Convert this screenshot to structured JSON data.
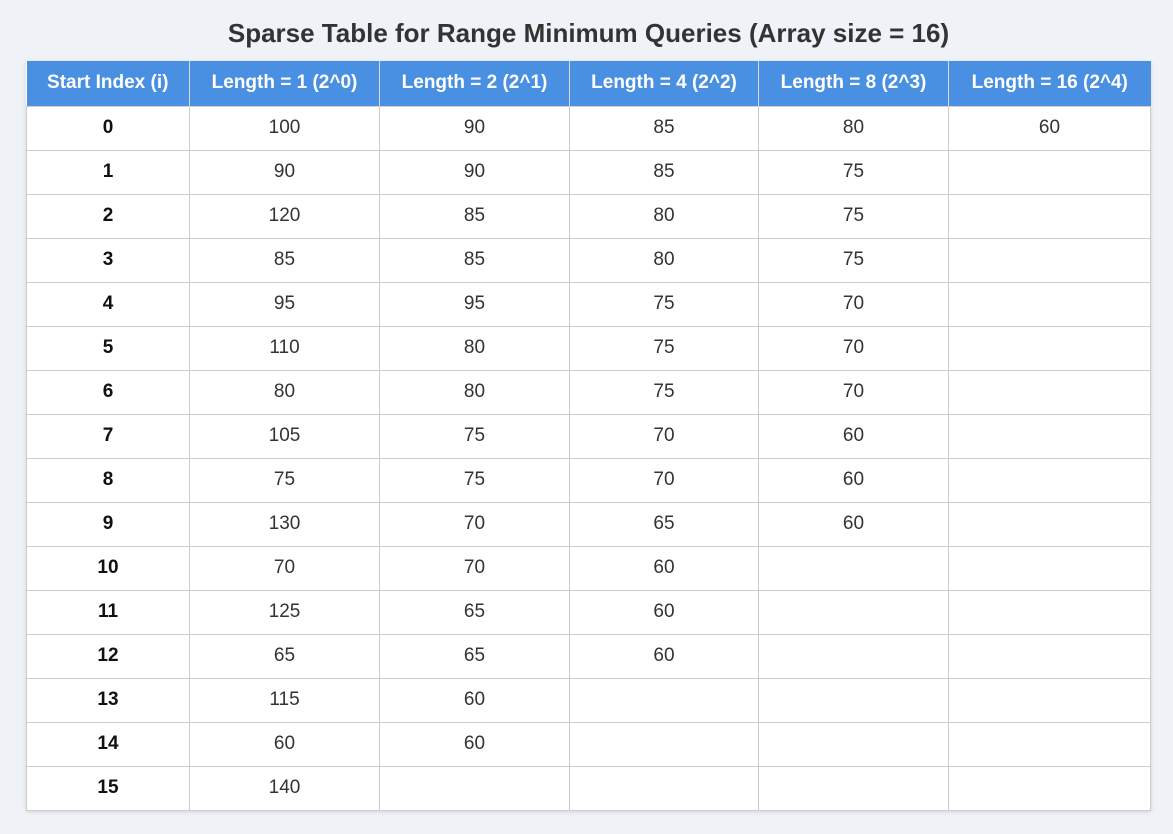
{
  "chart_data": {
    "type": "table",
    "title": "Sparse Table for Range Minimum Queries (Array size = 16)",
    "columns": [
      "Start Index (i)",
      "Length = 1 (2^0)",
      "Length = 2 (2^1)",
      "Length = 4 (2^2)",
      "Length = 8 (2^3)",
      "Length = 16 (2^4)"
    ],
    "rows": [
      [
        "0",
        "100",
        "90",
        "85",
        "80",
        "60"
      ],
      [
        "1",
        "90",
        "90",
        "85",
        "75",
        ""
      ],
      [
        "2",
        "120",
        "85",
        "80",
        "75",
        ""
      ],
      [
        "3",
        "85",
        "85",
        "80",
        "75",
        ""
      ],
      [
        "4",
        "95",
        "95",
        "75",
        "70",
        ""
      ],
      [
        "5",
        "110",
        "80",
        "75",
        "70",
        ""
      ],
      [
        "6",
        "80",
        "80",
        "75",
        "70",
        ""
      ],
      [
        "7",
        "105",
        "75",
        "70",
        "60",
        ""
      ],
      [
        "8",
        "75",
        "75",
        "70",
        "60",
        ""
      ],
      [
        "9",
        "130",
        "70",
        "65",
        "60",
        ""
      ],
      [
        "10",
        "70",
        "70",
        "60",
        "",
        ""
      ],
      [
        "11",
        "125",
        "65",
        "60",
        "",
        ""
      ],
      [
        "12",
        "65",
        "65",
        "60",
        "",
        ""
      ],
      [
        "13",
        "115",
        "60",
        "",
        "",
        ""
      ],
      [
        "14",
        "60",
        "60",
        "",
        "",
        ""
      ],
      [
        "15",
        "140",
        "",
        "",
        "",
        ""
      ]
    ]
  },
  "colors": {
    "header_bg": "#4a90e2",
    "header_text": "#ffffff",
    "page_bg": "#eff2f7",
    "title_text": "#333333"
  }
}
